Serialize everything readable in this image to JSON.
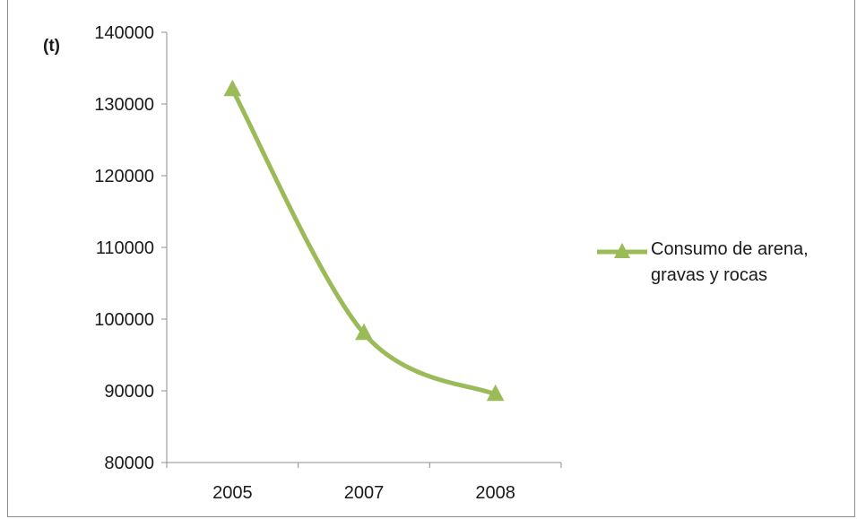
{
  "chart_data": {
    "type": "line",
    "categories": [
      "2005",
      "2007",
      "2008"
    ],
    "series": [
      {
        "name": "Consumo de arena, gravas y rocas",
        "values": [
          132000,
          98000,
          89500
        ],
        "color": "#9bbb59",
        "marker": "triangle"
      }
    ],
    "ylabel": "(t)",
    "ylim": [
      80000,
      140000
    ],
    "yticks": [
      80000,
      90000,
      100000,
      110000,
      120000,
      130000,
      140000
    ],
    "smooth": true,
    "grid": false,
    "legend_position": "right"
  }
}
